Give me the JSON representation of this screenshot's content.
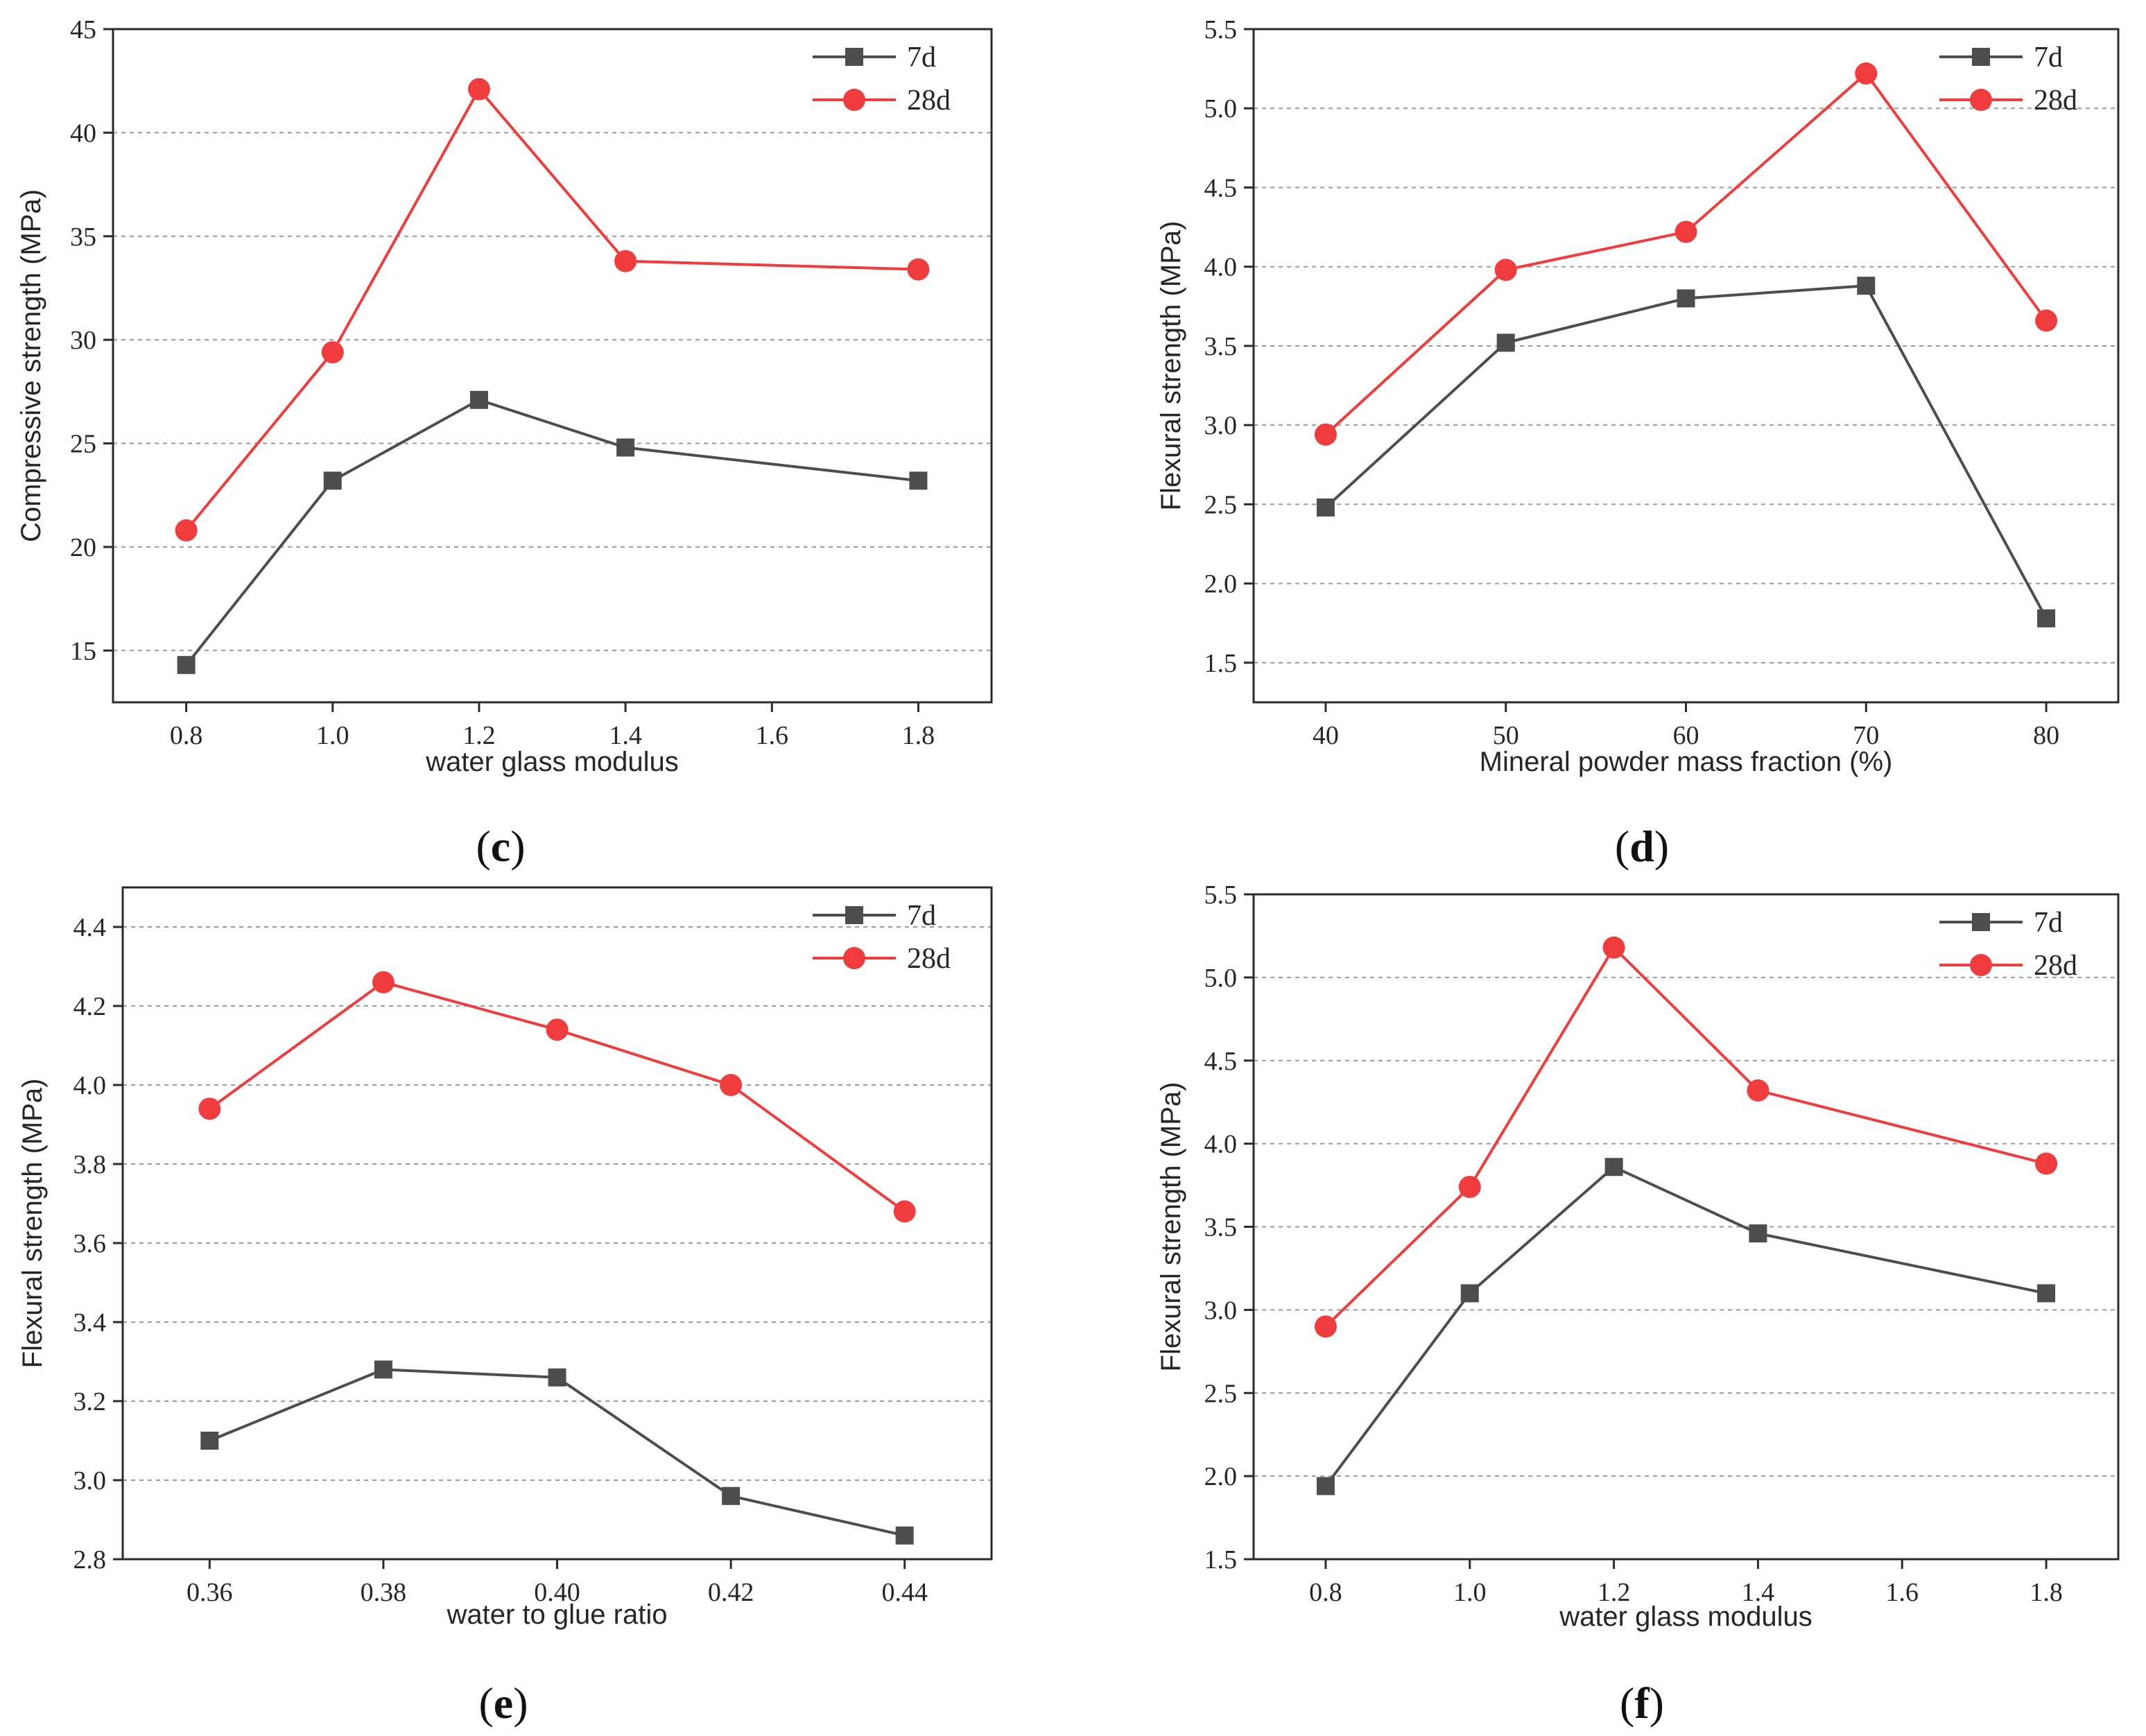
{
  "chart_data": [
    {
      "id": "c",
      "type": "line",
      "caption_letter": "c",
      "xlabel": "water glass modulus",
      "ylabel": "Compressive strength (MPa)",
      "x": [
        0.8,
        1.0,
        1.2,
        1.4,
        1.8
      ],
      "xlim": [
        0.7,
        1.9
      ],
      "xticks": [
        0.8,
        1.0,
        1.2,
        1.4,
        1.6,
        1.8
      ],
      "xtick_labels": [
        "0.8",
        "1.0",
        "1.2",
        "1.4",
        "1.6",
        "1.8"
      ],
      "ylim": [
        12.5,
        45
      ],
      "yticks": [
        15,
        20,
        25,
        30,
        35,
        40,
        45
      ],
      "ytick_labels": [
        "15",
        "20",
        "25",
        "30",
        "35",
        "40",
        "45"
      ],
      "series": [
        {
          "name": "7d",
          "color": "#4d4d4d",
          "marker": "square",
          "values": [
            14.3,
            23.2,
            27.1,
            24.8,
            23.2
          ]
        },
        {
          "name": "28d",
          "color": "#f03c3c",
          "marker": "circle",
          "values": [
            20.8,
            29.4,
            42.1,
            33.8,
            33.4
          ]
        }
      ],
      "legend_position": "top-right",
      "grid": "horizontal-dashed"
    },
    {
      "id": "d",
      "type": "line",
      "caption_letter": "d",
      "xlabel": "Mineral powder mass fraction (%)",
      "ylabel": "Flexural strength (MPa)",
      "x": [
        40,
        50,
        60,
        70,
        80
      ],
      "xlim": [
        36,
        84
      ],
      "xticks": [
        40,
        50,
        60,
        70,
        80
      ],
      "xtick_labels": [
        "40",
        "50",
        "60",
        "70",
        "80"
      ],
      "ylim": [
        1.25,
        5.5
      ],
      "yticks": [
        1.5,
        2.0,
        2.5,
        3.0,
        3.5,
        4.0,
        4.5,
        5.0,
        5.5
      ],
      "ytick_labels": [
        "1.5",
        "2.0",
        "2.5",
        "3.0",
        "3.5",
        "4.0",
        "4.5",
        "5.0",
        "5.5"
      ],
      "series": [
        {
          "name": "7d",
          "color": "#4d4d4d",
          "marker": "square",
          "values": [
            2.48,
            3.52,
            3.8,
            3.88,
            1.78
          ]
        },
        {
          "name": "28d",
          "color": "#f03c3c",
          "marker": "circle",
          "values": [
            2.94,
            3.98,
            4.22,
            5.22,
            3.66
          ]
        }
      ],
      "legend_position": "top-right",
      "grid": "horizontal-dashed"
    },
    {
      "id": "e",
      "type": "line",
      "caption_letter": "e",
      "xlabel": "water to glue ratio",
      "ylabel": "Flexural strength (MPa)",
      "x": [
        0.36,
        0.38,
        0.4,
        0.42,
        0.44
      ],
      "xlim": [
        0.35,
        0.45
      ],
      "xticks": [
        0.36,
        0.38,
        0.4,
        0.42,
        0.44
      ],
      "xtick_labels": [
        "0.36",
        "0.38",
        "0.40",
        "0.42",
        "0.44"
      ],
      "ylim": [
        2.8,
        4.5
      ],
      "yticks": [
        2.8,
        3.0,
        3.2,
        3.4,
        3.6,
        3.8,
        4.0,
        4.2,
        4.4
      ],
      "ytick_labels": [
        "2.8",
        "3.0",
        "3.2",
        "3.4",
        "3.6",
        "3.8",
        "4.0",
        "4.2",
        "4.4"
      ],
      "series": [
        {
          "name": "7d",
          "color": "#4d4d4d",
          "marker": "square",
          "values": [
            3.1,
            3.28,
            3.26,
            2.96,
            2.86
          ]
        },
        {
          "name": "28d",
          "color": "#f03c3c",
          "marker": "circle",
          "values": [
            3.94,
            4.26,
            4.14,
            4.0,
            3.68
          ]
        }
      ],
      "legend_position": "top-right",
      "grid": "horizontal-dashed"
    },
    {
      "id": "f",
      "type": "line",
      "caption_letter": "f",
      "xlabel": "water glass modulus",
      "ylabel": "Flexural strength (MPa)",
      "x": [
        0.8,
        1.0,
        1.2,
        1.4,
        1.8
      ],
      "xlim": [
        0.7,
        1.9
      ],
      "xticks": [
        0.8,
        1.0,
        1.2,
        1.4,
        1.6,
        1.8
      ],
      "xtick_labels": [
        "0.8",
        "1.0",
        "1.2",
        "1.4",
        "1.6",
        "1.8"
      ],
      "ylim": [
        1.5,
        5.5
      ],
      "yticks": [
        1.5,
        2.0,
        2.5,
        3.0,
        3.5,
        4.0,
        4.5,
        5.0,
        5.5
      ],
      "ytick_labels": [
        "1.5",
        "2.0",
        "2.5",
        "3.0",
        "3.5",
        "4.0",
        "4.5",
        "5.0",
        "5.5"
      ],
      "series": [
        {
          "name": "7d",
          "color": "#4d4d4d",
          "marker": "square",
          "values": [
            1.94,
            3.1,
            3.86,
            3.46,
            3.1
          ]
        },
        {
          "name": "28d",
          "color": "#f03c3c",
          "marker": "circle",
          "values": [
            2.9,
            3.74,
            5.18,
            4.32,
            3.88
          ]
        }
      ],
      "legend_position": "top-right",
      "grid": "horizontal-dashed"
    }
  ]
}
